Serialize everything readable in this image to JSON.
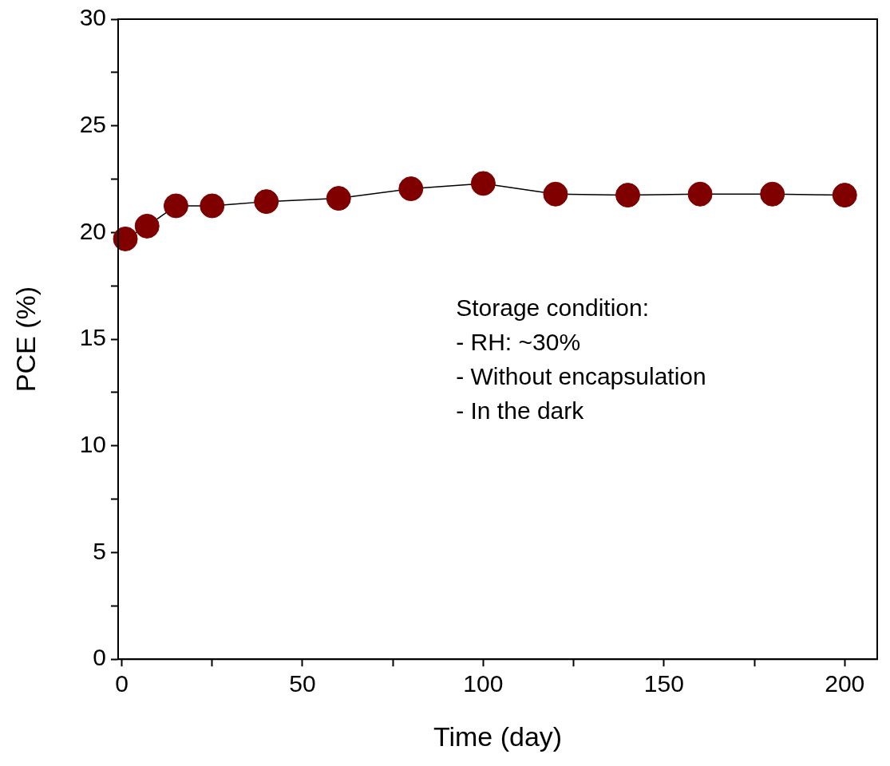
{
  "chart_data": {
    "type": "line",
    "xlabel": "Time (day)",
    "ylabel": "PCE (%)",
    "x": [
      1,
      7,
      15,
      25,
      40,
      60,
      80,
      100,
      120,
      140,
      160,
      180,
      200
    ],
    "series": [
      {
        "color": "#800000",
        "values": [
          19.7,
          20.3,
          21.25,
          21.25,
          21.45,
          21.6,
          22.05,
          22.3,
          21.8,
          21.75,
          21.8,
          21.8,
          21.75
        ]
      }
    ],
    "xlim": [
      -1,
      209
    ],
    "xticks": [
      0,
      {
        "value": 25,
        "label": null
      },
      50,
      {
        "value": 75,
        "label": null
      },
      100,
      {
        "value": 125,
        "label": null
      },
      150,
      {
        "value": 175,
        "label": null
      },
      200
    ],
    "ylim": [
      0,
      30
    ],
    "yticks": [
      0,
      {
        "value": 2.5,
        "label": null
      },
      5,
      {
        "value": 7.5,
        "label": null
      },
      10,
      {
        "value": 12.5,
        "label": null
      },
      15,
      {
        "value": 17.5,
        "label": null
      },
      20,
      {
        "value": 22.5,
        "label": null
      },
      25,
      {
        "value": 27.5,
        "label": null
      },
      30
    ],
    "marker": "circle",
    "line_style": "solid",
    "grid": false,
    "legend": false,
    "annotations": [
      "Storage condition:",
      "- RH: ~30%",
      "- Without encapsulation",
      "- In the dark"
    ]
  }
}
